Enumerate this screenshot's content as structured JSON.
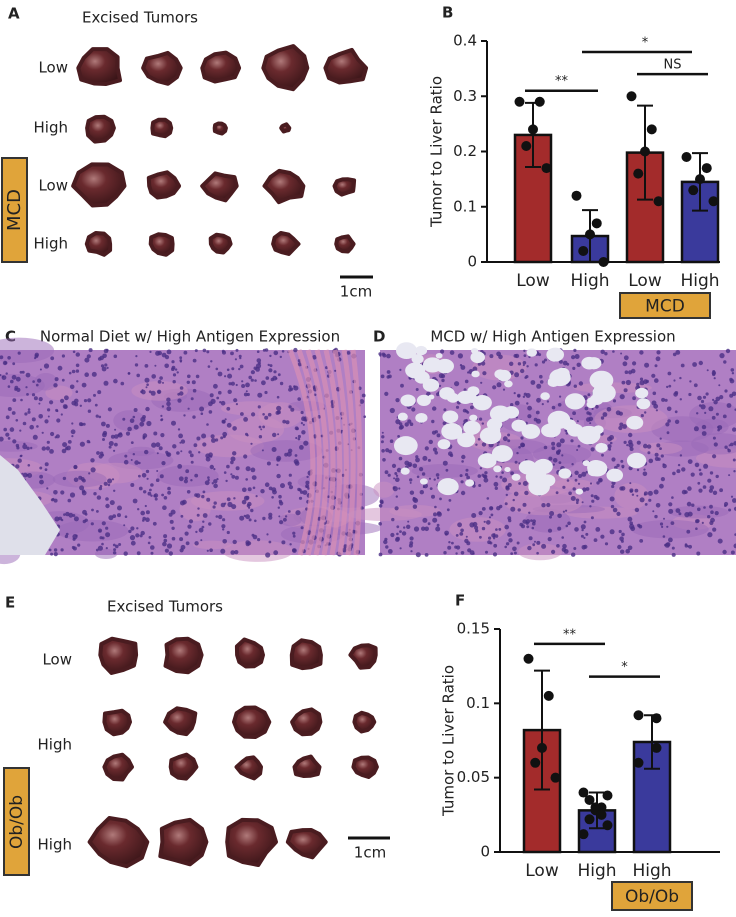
{
  "panels": {
    "A": {
      "label": "A",
      "title": "Excised Tumors",
      "rows": [
        "Low",
        "High",
        "Low",
        "High"
      ],
      "group": "MCD",
      "scale": "1cm"
    },
    "C": {
      "label": "C",
      "title": "Normal Diet w/ High Antigen Expression"
    },
    "D": {
      "label": "D",
      "title": "MCD w/ High Antigen Expression"
    },
    "E": {
      "label": "E",
      "title": "Excised Tumors",
      "rows": [
        "Low",
        "High",
        "High"
      ],
      "group": "Ob/Ob",
      "scale": "1cm"
    }
  },
  "chart_data": [
    {
      "type": "bar",
      "panel": "B",
      "ylabel": "Tumor to Liver Ratio",
      "categories": [
        "Low",
        "High",
        "Low",
        "High"
      ],
      "values": [
        0.23,
        0.047,
        0.198,
        0.145
      ],
      "errors": [
        0.058,
        0.047,
        0.085,
        0.052
      ],
      "colors": [
        "#a32b2b",
        "#3a3a9c",
        "#a32b2b",
        "#3a3a9c"
      ],
      "points": [
        [
          0.29,
          0.29,
          0.24,
          0.21,
          0.17
        ],
        [
          0.12,
          0.07,
          0.05,
          0.02,
          0.0
        ],
        [
          0.3,
          0.24,
          0.2,
          0.16,
          0.11
        ],
        [
          0.19,
          0.17,
          0.15,
          0.13,
          0.11
        ]
      ],
      "ylim": [
        0,
        0.4
      ],
      "yticks": [
        0,
        0.1,
        0.2,
        0.3,
        0.4
      ],
      "annotations": [
        "**",
        "*",
        "NS"
      ],
      "group_label": "MCD"
    },
    {
      "type": "bar",
      "panel": "F",
      "ylabel": "Tumor to Liver Ratio",
      "categories": [
        "Low",
        "High",
        "High"
      ],
      "values": [
        0.082,
        0.028,
        0.074
      ],
      "errors": [
        0.04,
        0.012,
        0.018
      ],
      "colors": [
        "#a32b2b",
        "#3a3a9c",
        "#3a3a9c"
      ],
      "points": [
        [
          0.13,
          0.105,
          0.07,
          0.06,
          0.05
        ],
        [
          0.04,
          0.038,
          0.035,
          0.03,
          0.03,
          0.028,
          0.025,
          0.022,
          0.018,
          0.012
        ],
        [
          0.092,
          0.09,
          0.07,
          0.06
        ]
      ],
      "ylim": [
        0,
        0.15
      ],
      "yticks": [
        0,
        0.05,
        0.1,
        0.15
      ],
      "annotations": [
        "**",
        "*"
      ],
      "group_label": "Ob/Ob"
    }
  ]
}
